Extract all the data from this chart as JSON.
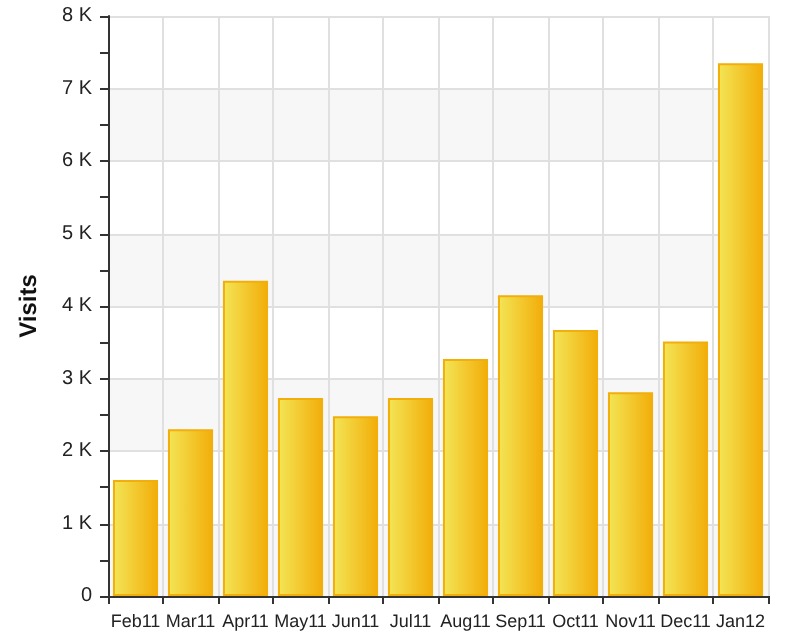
{
  "chart_data": {
    "type": "bar",
    "ylabel": "Visits",
    "categories": [
      "Feb11",
      "Mar11",
      "Apr11",
      "May11",
      "Jun11",
      "Jul11",
      "Aug11",
      "Sep11",
      "Oct11",
      "Nov11",
      "Dec11",
      "Jan12"
    ],
    "values": [
      1600,
      2300,
      4350,
      2730,
      2480,
      2730,
      3270,
      4150,
      3670,
      2810,
      3510,
      7350
    ],
    "color": "#f2ae0a",
    "ylim": [
      0,
      8000
    ],
    "yticks": [
      {
        "value": 0,
        "label": "0"
      },
      {
        "value": 500,
        "label": null
      },
      {
        "value": 1000,
        "label": "1 K"
      },
      {
        "value": 1500,
        "label": null
      },
      {
        "value": 2000,
        "label": "2 K"
      },
      {
        "value": 2500,
        "label": null
      },
      {
        "value": 3000,
        "label": "3 K"
      },
      {
        "value": 3500,
        "label": null
      },
      {
        "value": 4000,
        "label": "4 K"
      },
      {
        "value": 4500,
        "label": null
      },
      {
        "value": 5000,
        "label": "5 K"
      },
      {
        "value": 5500,
        "label": null
      },
      {
        "value": 6000,
        "label": "6 K"
      },
      {
        "value": 6500,
        "label": null
      },
      {
        "value": 7000,
        "label": "7 K"
      },
      {
        "value": 7500,
        "label": null
      },
      {
        "value": 8000,
        "label": "8 K"
      }
    ],
    "grid": true
  }
}
